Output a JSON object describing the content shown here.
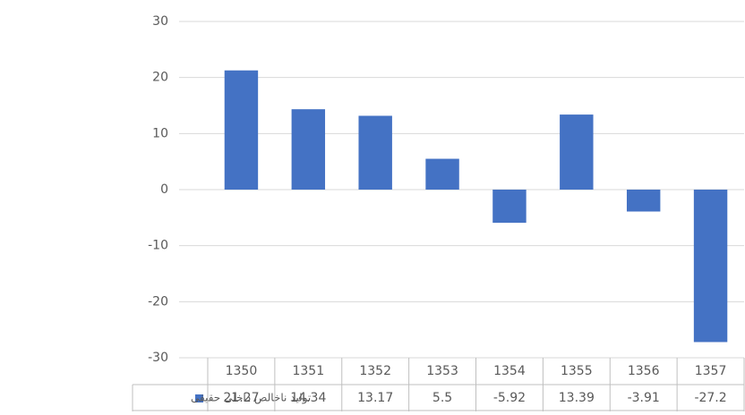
{
  "chart_data": {
    "type": "bar",
    "categories": [
      "1350",
      "1351",
      "1352",
      "1353",
      "1354",
      "1355",
      "1356",
      "1357"
    ],
    "series": [
      {
        "name": "تولید ناخالص داخلی حقیقی",
        "color": "#4472c4",
        "values": [
          21.27,
          14.34,
          13.17,
          5.5,
          -5.92,
          13.39,
          -3.91,
          -27.2
        ]
      }
    ],
    "ylim": [
      -30,
      30
    ],
    "yticks": [
      -30,
      -20,
      -10,
      0,
      10,
      20,
      30
    ],
    "grid": true
  }
}
